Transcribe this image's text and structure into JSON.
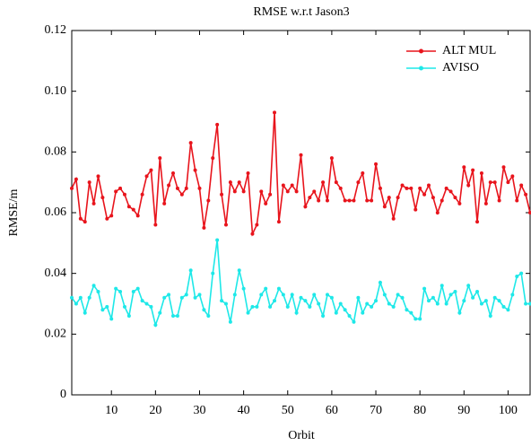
{
  "chart_data": {
    "type": "line",
    "title": "RMSE w.r.t Jason3",
    "xlabel": "Orbit",
    "ylabel": "RMSE/m",
    "x": [
      1,
      2,
      3,
      4,
      5,
      6,
      7,
      8,
      9,
      10,
      11,
      12,
      13,
      14,
      15,
      16,
      17,
      18,
      19,
      20,
      21,
      22,
      23,
      24,
      25,
      26,
      27,
      28,
      29,
      30,
      31,
      32,
      33,
      34,
      35,
      36,
      37,
      38,
      39,
      40,
      41,
      42,
      43,
      44,
      45,
      46,
      47,
      48,
      49,
      50,
      51,
      52,
      53,
      54,
      55,
      56,
      57,
      58,
      59,
      60,
      61,
      62,
      63,
      64,
      65,
      66,
      67,
      68,
      69,
      70,
      71,
      72,
      73,
      74,
      75,
      76,
      77,
      78,
      79,
      80,
      81,
      82,
      83,
      84,
      85,
      86,
      87,
      88,
      89,
      90,
      91,
      92,
      93,
      94,
      95,
      96,
      97,
      98,
      99,
      100,
      101,
      102,
      103,
      104,
      105
    ],
    "series": [
      {
        "name": "ALT MUL",
        "color": "#e8141c",
        "values": [
          0.068,
          0.071,
          0.058,
          0.057,
          0.07,
          0.063,
          0.072,
          0.065,
          0.058,
          0.059,
          0.067,
          0.068,
          0.066,
          0.062,
          0.061,
          0.059,
          0.066,
          0.072,
          0.074,
          0.056,
          0.078,
          0.063,
          0.069,
          0.073,
          0.068,
          0.066,
          0.068,
          0.083,
          0.074,
          0.068,
          0.055,
          0.064,
          0.078,
          0.089,
          0.066,
          0.056,
          0.07,
          0.067,
          0.07,
          0.067,
          0.073,
          0.053,
          0.056,
          0.067,
          0.063,
          0.066,
          0.093,
          0.057,
          0.069,
          0.067,
          0.069,
          0.067,
          0.079,
          0.062,
          0.065,
          0.067,
          0.064,
          0.07,
          0.064,
          0.078,
          0.07,
          0.068,
          0.064,
          0.064,
          0.064,
          0.07,
          0.073,
          0.064,
          0.064,
          0.076,
          0.068,
          0.062,
          0.065,
          0.058,
          0.065,
          0.069,
          0.068,
          0.068,
          0.061,
          0.068,
          0.066,
          0.069,
          0.065,
          0.06,
          0.064,
          0.068,
          0.067,
          0.065,
          0.063,
          0.075,
          0.069,
          0.074,
          0.057,
          0.073,
          0.063,
          0.07,
          0.07,
          0.064,
          0.075,
          0.07,
          0.072,
          0.064,
          0.069,
          0.066,
          0.06
        ]
      },
      {
        "name": "AVISO",
        "color": "#1ee8e8",
        "values": [
          0.032,
          0.03,
          0.032,
          0.027,
          0.032,
          0.036,
          0.034,
          0.028,
          0.029,
          0.025,
          0.035,
          0.034,
          0.029,
          0.026,
          0.034,
          0.035,
          0.031,
          0.03,
          0.029,
          0.023,
          0.027,
          0.032,
          0.033,
          0.026,
          0.026,
          0.032,
          0.033,
          0.041,
          0.032,
          0.033,
          0.028,
          0.026,
          0.04,
          0.051,
          0.031,
          0.03,
          0.024,
          0.033,
          0.041,
          0.035,
          0.027,
          0.029,
          0.029,
          0.033,
          0.035,
          0.029,
          0.031,
          0.035,
          0.033,
          0.029,
          0.033,
          0.027,
          0.032,
          0.031,
          0.029,
          0.033,
          0.03,
          0.026,
          0.033,
          0.032,
          0.027,
          0.03,
          0.028,
          0.026,
          0.024,
          0.032,
          0.027,
          0.03,
          0.029,
          0.031,
          0.037,
          0.033,
          0.03,
          0.029,
          0.033,
          0.032,
          0.028,
          0.027,
          0.025,
          0.025,
          0.035,
          0.031,
          0.032,
          0.03,
          0.036,
          0.03,
          0.033,
          0.034,
          0.027,
          0.031,
          0.036,
          0.032,
          0.034,
          0.03,
          0.031,
          0.026,
          0.032,
          0.031,
          0.029,
          0.028,
          0.033,
          0.039,
          0.04,
          0.03,
          0.03
        ]
      }
    ],
    "xlim": [
      1,
      105
    ],
    "xticks": [
      10,
      20,
      30,
      40,
      50,
      60,
      70,
      80,
      90,
      100
    ],
    "ylim": [
      0,
      0.12
    ],
    "yticks": [
      0,
      0.02,
      0.04,
      0.06,
      0.08,
      {
        "value": 0.1,
        "label": "0.10"
      },
      0.12
    ],
    "legend": "upper right"
  }
}
